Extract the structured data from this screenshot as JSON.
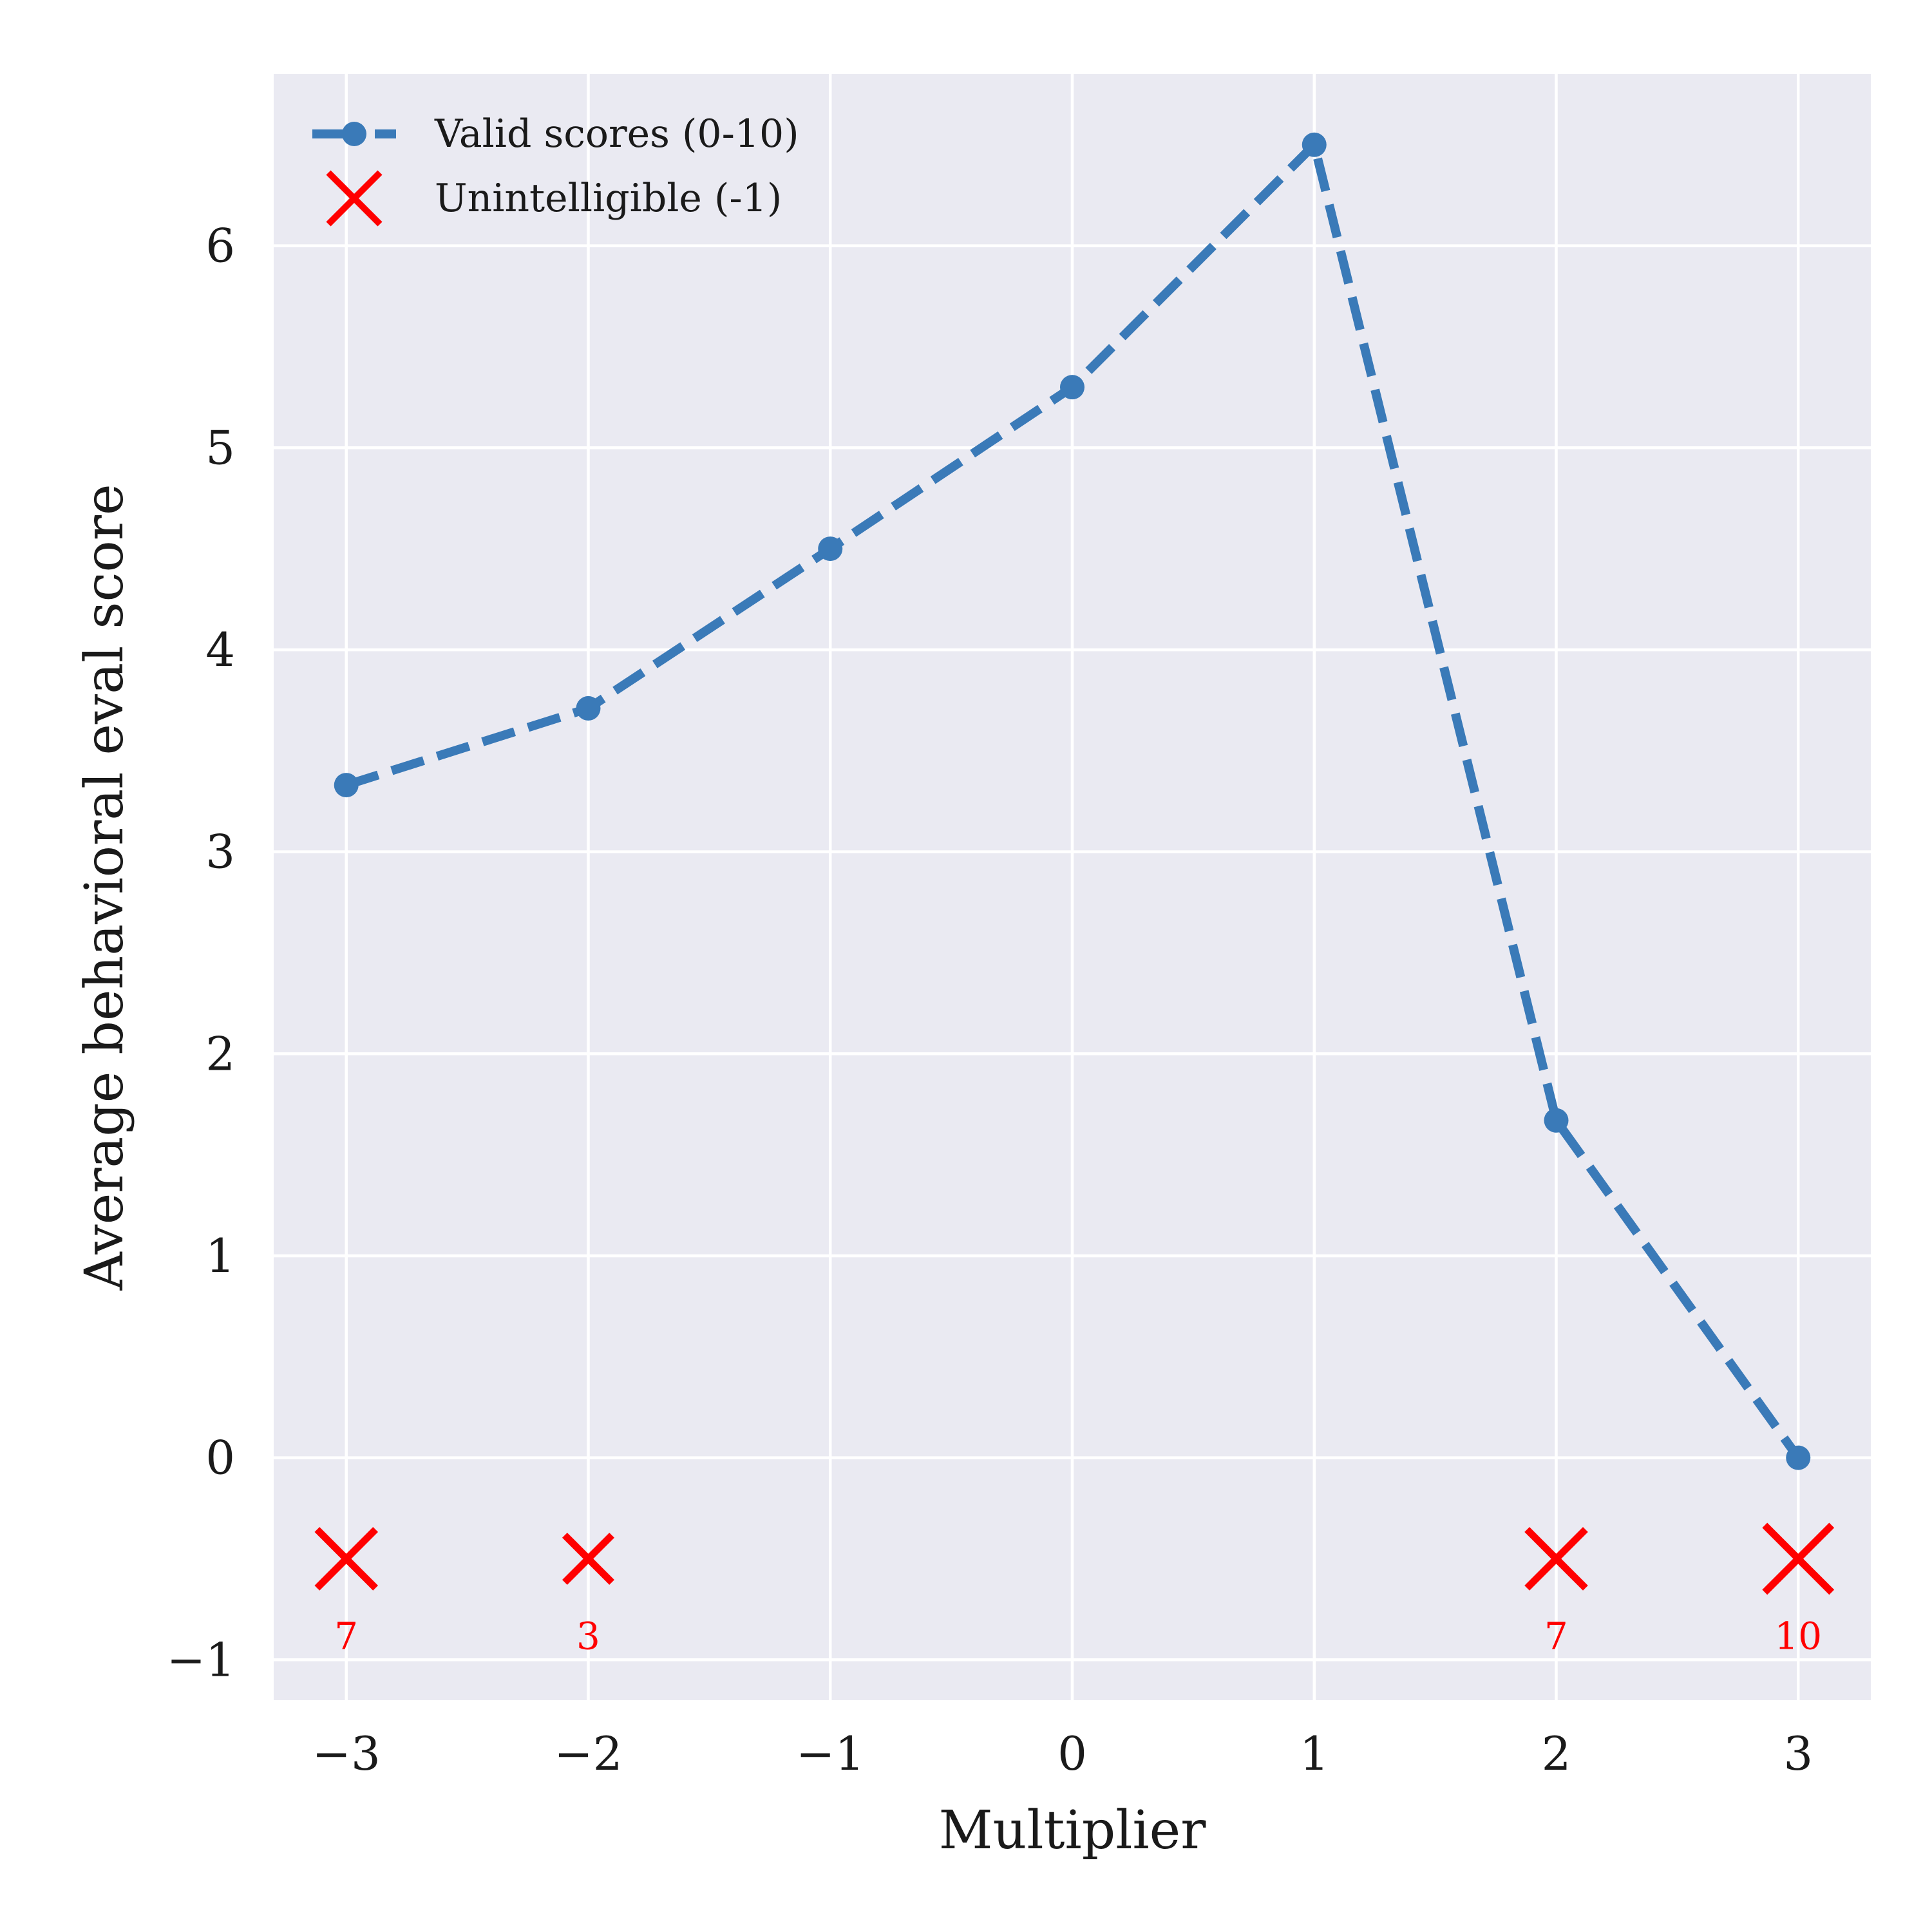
{
  "chart_data": {
    "type": "line",
    "xlabel": "Multiplier",
    "ylabel": "Average behavioral eval score",
    "xlim": [
      -3.3,
      3.3
    ],
    "ylim": [
      -1.2,
      6.85
    ],
    "xticks": [
      -3,
      -2,
      -1,
      0,
      1,
      2,
      3
    ],
    "xtick_labels": [
      "−3",
      "−2",
      "−1",
      "0",
      "1",
      "2",
      "3"
    ],
    "yticks": [
      -1,
      0,
      1,
      2,
      3,
      4,
      5,
      6
    ],
    "ytick_labels": [
      "−1",
      "0",
      "1",
      "2",
      "3",
      "4",
      "5",
      "6"
    ],
    "grid": true,
    "legend_position": "top-left",
    "series": [
      {
        "name": "Valid scores (0-10)",
        "style": "dashed-line-with-points",
        "color": "#3a7ab8",
        "x": [
          -3,
          -2,
          -1,
          0,
          1,
          2,
          3
        ],
        "y": [
          3.33,
          3.71,
          4.5,
          5.3,
          6.5,
          1.67,
          0.0
        ]
      },
      {
        "name": "Unintelligible (-1)",
        "style": "x-markers",
        "color": "#ff0000",
        "x": [
          -3,
          -2,
          2,
          3
        ],
        "y": [
          -0.5,
          -0.5,
          -0.5,
          -0.5
        ],
        "counts": [
          7,
          3,
          7,
          10
        ],
        "count_labels": [
          "7",
          "3",
          "7",
          "10"
        ]
      }
    ]
  },
  "colors": {
    "plot_background": "#eaeaf2",
    "grid": "#ffffff"
  }
}
